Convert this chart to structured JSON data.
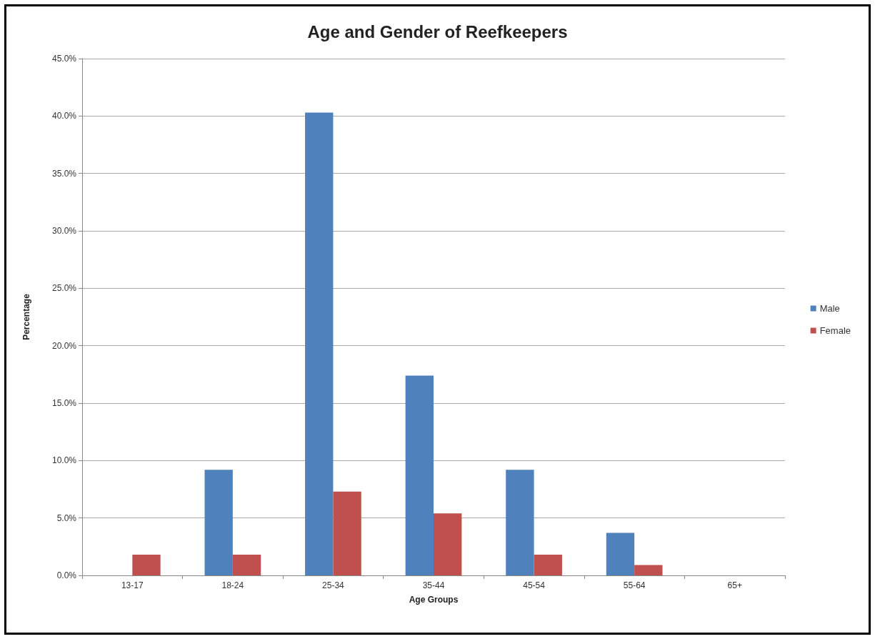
{
  "chart_data": {
    "type": "bar",
    "title": "Age and Gender of Reefkeepers",
    "xlabel": "Age Groups",
    "ylabel": "Percentage",
    "categories": [
      "13-17",
      "18-24",
      "25-34",
      "35-44",
      "45-54",
      "55-64",
      "65+"
    ],
    "series": [
      {
        "name": "Male",
        "color": "#4f81bd",
        "values": [
          0,
          9.2,
          40.3,
          17.4,
          9.2,
          3.7,
          0
        ]
      },
      {
        "name": "Female",
        "color": "#c0504d",
        "values": [
          1.8,
          1.8,
          7.3,
          5.4,
          1.8,
          0.9,
          0
        ]
      }
    ],
    "ylim": [
      0,
      45
    ],
    "yticks": [
      {
        "value": 0,
        "label": "0.0%"
      },
      {
        "value": 5,
        "label": "5.0%"
      },
      {
        "value": 10,
        "label": "10.0%"
      },
      {
        "value": 15,
        "label": "15.0%"
      },
      {
        "value": 20,
        "label": "20.0%"
      },
      {
        "value": 25,
        "label": "25.0%"
      },
      {
        "value": 30,
        "label": "30.0%"
      },
      {
        "value": 35,
        "label": "35.0%"
      },
      {
        "value": 40,
        "label": "40.0%"
      },
      {
        "value": 45,
        "label": "45.0%"
      }
    ],
    "grid": "y",
    "legend": "right"
  }
}
